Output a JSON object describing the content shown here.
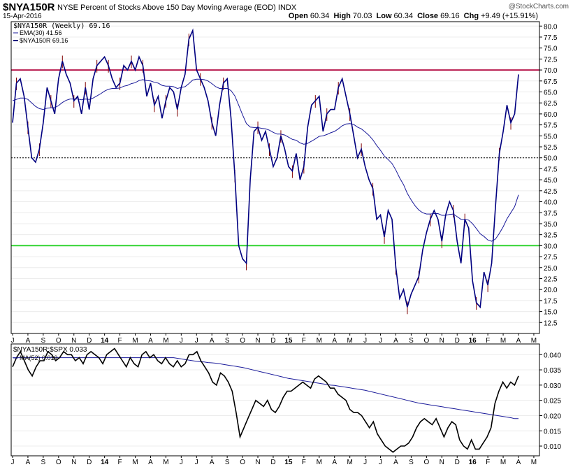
{
  "header": {
    "symbol": "$NYA150R",
    "description": "NYSE Percent of Stocks Above 150 Day Moving Average (EOD) INDX",
    "brand": "@StockCharts.com",
    "date": "15-Apr-2016",
    "open_label": "Open",
    "open": "60.34",
    "high_label": "High",
    "high": "70.03",
    "low_label": "Low",
    "low": "60.34",
    "close_label": "Close",
    "close": "69.16",
    "chg_label": "Chg",
    "chg": "+9.49 (+15.91%)"
  },
  "colors": {
    "price_line": "#000080",
    "wick": "#800000",
    "ema": "#1a1a9a",
    "upper_line": "#b0003a",
    "lower_line": "#22d022",
    "ratio_line": "#000000",
    "ratio_ma": "#1a1a9a"
  },
  "chart_data": [
    {
      "type": "line",
      "legend": [
        "$NYA150R (Weekly) 69.16",
        "EMA(30) 41.56",
        "$NYA150R 69.16"
      ],
      "ylim": [
        10,
        81
      ],
      "yticks": [
        "80.0",
        "77.5",
        "75.0",
        "72.5",
        "70.0",
        "67.5",
        "65.0",
        "62.5",
        "60.0",
        "57.5",
        "55.0",
        "52.5",
        "50.0",
        "47.5",
        "45.0",
        "42.5",
        "40.0",
        "37.5",
        "35.0",
        "32.5",
        "30.0",
        "27.5",
        "25.0",
        "22.5",
        "20.0",
        "17.5",
        "15.0",
        "12.5"
      ],
      "x_labels": [
        "J",
        "A",
        "S",
        "O",
        "N",
        "D",
        "14",
        "F",
        "M",
        "A",
        "M",
        "J",
        "J",
        "A",
        "S",
        "O",
        "N",
        "D",
        "15",
        "F",
        "M",
        "A",
        "M",
        "J",
        "J",
        "A",
        "S",
        "O",
        "N",
        "D",
        "16",
        "F",
        "M",
        "A",
        "M"
      ],
      "horizontal_lines": [
        70,
        50,
        30
      ],
      "series": [
        {
          "name": "$NYA150R",
          "values": [
            58,
            67,
            68,
            64,
            57,
            50,
            49,
            52,
            58,
            66,
            63,
            60,
            68,
            72,
            69,
            67,
            63,
            64,
            60,
            66,
            61,
            68,
            71,
            72,
            73,
            71,
            68,
            66,
            67,
            71,
            70,
            72,
            70,
            73,
            71,
            64,
            67,
            62,
            64,
            59,
            63,
            66,
            65,
            61,
            66,
            69,
            77,
            79,
            70,
            68,
            66,
            63,
            58,
            55,
            62,
            67,
            68,
            59,
            46,
            30,
            27,
            26,
            45,
            56,
            57,
            54,
            56,
            52,
            48,
            50,
            55,
            52,
            48,
            47,
            51,
            45,
            48,
            57,
            62,
            63,
            64,
            56,
            60,
            61,
            61,
            66,
            68,
            64,
            60,
            55,
            50,
            52,
            48,
            45,
            43,
            36,
            37,
            32,
            38,
            36,
            25,
            18,
            20,
            16,
            19,
            21,
            23,
            29,
            33,
            36,
            38,
            36,
            31,
            37,
            40,
            38,
            31,
            26,
            36,
            34,
            22,
            17,
            16,
            24,
            21,
            26,
            39,
            51,
            56,
            62,
            58,
            60,
            69
          ]
        },
        {
          "name": "EMA(30)",
          "values": [
            63,
            63.3,
            63.6,
            63.6,
            63.3,
            62.5,
            61.7,
            61.2,
            61,
            61.3,
            61.4,
            61.4,
            61.9,
            62.6,
            63.1,
            63.4,
            63.4,
            63.4,
            63.2,
            63.4,
            63.3,
            63.6,
            64.1,
            64.6,
            65.2,
            65.6,
            65.8,
            65.8,
            65.9,
            66.3,
            66.5,
            66.9,
            67.1,
            67.6,
            67.8,
            67.6,
            67.5,
            67.2,
            67,
            66.5,
            66.3,
            66.3,
            66.2,
            65.8,
            66,
            66.2,
            66.9,
            67.7,
            67.9,
            67.9,
            67.8,
            67.5,
            66.9,
            66.2,
            65.8,
            65.8,
            65.8,
            65.3,
            64.1,
            62,
            59.8,
            57.8,
            57,
            56.9,
            56.9,
            56.7,
            56.6,
            56.3,
            55.8,
            55.4,
            55.4,
            55.2,
            54.7,
            54.2,
            54,
            53.4,
            53.1,
            53.3,
            53.8,
            54.3,
            54.9,
            55,
            55.3,
            55.7,
            56,
            56.6,
            57.3,
            57.7,
            57.8,
            57.6,
            57,
            56.6,
            55.9,
            55.1,
            54.1,
            52.8,
            51.7,
            50.4,
            49.6,
            48.7,
            47.2,
            45.4,
            43.9,
            41.9,
            40.4,
            39.1,
            38.1,
            37.5,
            37.2,
            37.2,
            37.3,
            37.3,
            36.9,
            36.9,
            37.1,
            37.2,
            36.6,
            36,
            36,
            35.8,
            35,
            33.9,
            32.7,
            32.1,
            31.3,
            31,
            31.5,
            32.8,
            34.3,
            36.1,
            37.5,
            38.9,
            41.56
          ]
        }
      ]
    },
    {
      "type": "line",
      "legend": [
        "$NYA150R:$SPX 0.033",
        "MA(52) 0.019"
      ],
      "ylim": [
        0.0068,
        0.0435
      ],
      "yticks": [
        "0.040",
        "0.035",
        "0.030",
        "0.025",
        "0.020",
        "0.015",
        "0.010"
      ],
      "series": [
        {
          "name": "$NYA150R:$SPX",
          "values": [
            0.036,
            0.039,
            0.041,
            0.038,
            0.035,
            0.033,
            0.036,
            0.038,
            0.038,
            0.041,
            0.04,
            0.038,
            0.039,
            0.041,
            0.04,
            0.04,
            0.038,
            0.039,
            0.037,
            0.04,
            0.041,
            0.04,
            0.039,
            0.037,
            0.04,
            0.041,
            0.042,
            0.04,
            0.038,
            0.036,
            0.039,
            0.037,
            0.036,
            0.04,
            0.041,
            0.039,
            0.04,
            0.038,
            0.037,
            0.039,
            0.037,
            0.036,
            0.038,
            0.036,
            0.037,
            0.04,
            0.04,
            0.041,
            0.038,
            0.036,
            0.034,
            0.031,
            0.03,
            0.034,
            0.033,
            0.031,
            0.028,
            0.021,
            0.013,
            0.016,
            0.019,
            0.022,
            0.025,
            0.024,
            0.023,
            0.025,
            0.022,
            0.021,
            0.023,
            0.026,
            0.028,
            0.028,
            0.029,
            0.03,
            0.031,
            0.03,
            0.029,
            0.032,
            0.033,
            0.032,
            0.031,
            0.029,
            0.029,
            0.027,
            0.026,
            0.025,
            0.022,
            0.021,
            0.021,
            0.02,
            0.018,
            0.016,
            0.018,
            0.014,
            0.012,
            0.01,
            0.009,
            0.008,
            0.009,
            0.01,
            0.01,
            0.011,
            0.013,
            0.016,
            0.018,
            0.019,
            0.018,
            0.017,
            0.019,
            0.016,
            0.013,
            0.016,
            0.018,
            0.017,
            0.012,
            0.01,
            0.009,
            0.012,
            0.009,
            0.009,
            0.011,
            0.013,
            0.016,
            0.024,
            0.028,
            0.031,
            0.029,
            0.031,
            0.03,
            0.033
          ]
        },
        {
          "name": "MA(52)",
          "values": [
            0.039,
            0.039,
            0.039,
            0.039,
            0.039,
            0.039,
            0.039,
            0.039,
            0.039,
            0.039,
            0.039,
            0.039,
            0.039,
            0.039,
            0.039,
            0.039,
            0.039,
            0.039,
            0.039,
            0.039,
            0.039,
            0.039,
            0.039,
            0.039,
            0.039,
            0.039,
            0.039,
            0.039,
            0.039,
            0.039,
            0.039,
            0.039,
            0.039,
            0.039,
            0.039,
            0.039,
            0.039,
            0.039,
            0.039,
            0.039,
            0.039,
            0.039,
            0.039,
            0.0388,
            0.0386,
            0.0384,
            0.0382,
            0.038,
            0.0378,
            0.0377,
            0.0376,
            0.0374,
            0.0373,
            0.0372,
            0.037,
            0.0368,
            0.0366,
            0.0364,
            0.0362,
            0.036,
            0.0358,
            0.0355,
            0.0352,
            0.0349,
            0.0346,
            0.0343,
            0.034,
            0.0337,
            0.0334,
            0.0331,
            0.0328,
            0.0325,
            0.0322,
            0.032,
            0.0318,
            0.0316,
            0.0314,
            0.0312,
            0.031,
            0.0308,
            0.0306,
            0.0304,
            0.0302,
            0.03,
            0.0299,
            0.0297,
            0.0295,
            0.0293,
            0.0291,
            0.0289,
            0.0287,
            0.0285,
            0.0283,
            0.028,
            0.0277,
            0.0274,
            0.0271,
            0.0268,
            0.0265,
            0.0262,
            0.0259,
            0.0256,
            0.0253,
            0.025,
            0.0247,
            0.0244,
            0.0241,
            0.0239,
            0.0237,
            0.0235,
            0.0233,
            0.0231,
            0.0229,
            0.0227,
            0.0225,
            0.0223,
            0.0221,
            0.0219,
            0.0217,
            0.0215,
            0.0213,
            0.0211,
            0.0209,
            0.0207,
            0.0205,
            0.0203,
            0.0201,
            0.0199,
            0.0197,
            0.0195,
            0.0193,
            0.019,
            0.019
          ]
        }
      ]
    }
  ]
}
